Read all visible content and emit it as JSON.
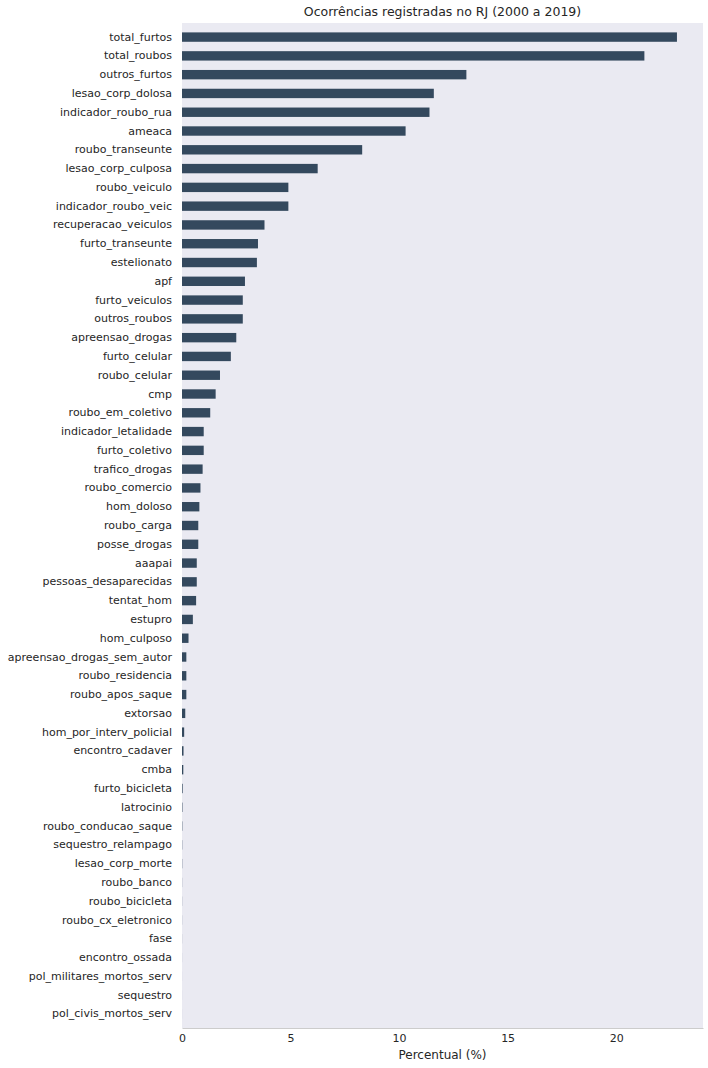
{
  "chart_data": {
    "type": "bar",
    "orientation": "horizontal",
    "title": "Ocorrências registradas no RJ (2000 a 2019)",
    "x_label": "Percentual (%)",
    "categories": [
      "total_furtos",
      "total_roubos",
      "outros_furtos",
      "lesao_corp_dolosa",
      "indicador_roubo_rua",
      "ameaca",
      "roubo_transeunte",
      "lesao_corp_culposa",
      "roubo_veiculo",
      "indicador_roubo_veic",
      "recuperacao_veiculos",
      "furto_transeunte",
      "estelionato",
      "apf",
      "furto_veiculos",
      "outros_roubos",
      "apreensao_drogas",
      "furto_celular",
      "roubo_celular",
      "cmp",
      "roubo_em_coletivo",
      "indicador_letalidade",
      "furto_coletivo",
      "trafico_drogas",
      "roubo_comercio",
      "hom_doloso",
      "roubo_carga",
      "posse_drogas",
      "aaapai",
      "pessoas_desaparecidas",
      "tentat_hom",
      "estupro",
      "hom_culposo",
      "apreensao_drogas_sem_autor",
      "roubo_residencia",
      "roubo_apos_saque",
      "extorsao",
      "hom_por_interv_policial",
      "encontro_cadaver",
      "cmba",
      "furto_bicicleta",
      "latrocinio",
      "roubo_conducao_saque",
      "sequestro_relampago",
      "lesao_corp_morte",
      "roubo_banco",
      "roubo_bicicleta",
      "roubo_cx_eletronico",
      "fase",
      "encontro_ossada",
      "pol_militares_mortos_serv",
      "sequestro",
      "pol_civis_mortos_serv"
    ],
    "values": [
      22.8,
      21.3,
      13.1,
      11.6,
      11.4,
      10.3,
      8.3,
      6.25,
      4.9,
      4.9,
      3.8,
      3.5,
      3.45,
      2.9,
      2.8,
      2.8,
      2.5,
      2.25,
      1.75,
      1.55,
      1.3,
      1.0,
      1.0,
      0.95,
      0.85,
      0.8,
      0.75,
      0.75,
      0.68,
      0.68,
      0.65,
      0.5,
      0.3,
      0.2,
      0.2,
      0.2,
      0.15,
      0.1,
      0.07,
      0.06,
      0.03,
      0.02,
      0.015,
      0.01,
      0.01,
      0.005,
      0.005,
      0.004,
      0.003,
      0.002,
      0.001,
      0.001,
      0.001
    ],
    "color": "#34495e",
    "xlim": [
      0,
      24
    ],
    "xticks": [
      0,
      5,
      10,
      15,
      20
    ],
    "grid": false
  }
}
